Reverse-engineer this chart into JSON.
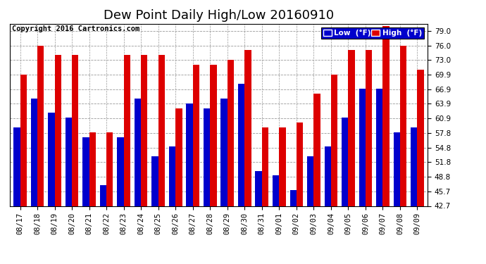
{
  "title": "Dew Point Daily High/Low 20160910",
  "copyright": "Copyright 2016 Cartronics.com",
  "categories": [
    "08/17",
    "08/18",
    "08/19",
    "08/20",
    "08/21",
    "08/22",
    "08/23",
    "08/24",
    "08/25",
    "08/26",
    "08/27",
    "08/28",
    "08/29",
    "08/30",
    "08/31",
    "09/01",
    "09/02",
    "09/03",
    "09/04",
    "09/05",
    "09/06",
    "09/07",
    "09/08",
    "09/09"
  ],
  "low": [
    59,
    65,
    62,
    61,
    57,
    47,
    57,
    65,
    53,
    55,
    64,
    63,
    65,
    68,
    50,
    49,
    46,
    53,
    55,
    61,
    67,
    67,
    58,
    59
  ],
  "high": [
    70,
    76,
    74,
    74,
    58,
    58,
    74,
    74,
    74,
    63,
    72,
    72,
    73,
    75,
    59,
    59,
    60,
    66,
    70,
    75,
    75,
    80,
    76,
    71
  ],
  "low_color": "#0000cc",
  "high_color": "#dd0000",
  "bg_color": "#ffffff",
  "grid_color": "#999999",
  "yticks": [
    42.7,
    45.7,
    48.8,
    51.8,
    54.8,
    57.8,
    60.9,
    63.9,
    66.9,
    69.9,
    73.0,
    76.0,
    79.0
  ],
  "ymin": 42.7,
  "ymax": 80.5,
  "legend_low_label": "Low  (°F)",
  "legend_high_label": "High  (°F)",
  "title_fontsize": 13,
  "tick_fontsize": 7.5,
  "copyright_fontsize": 7.5
}
